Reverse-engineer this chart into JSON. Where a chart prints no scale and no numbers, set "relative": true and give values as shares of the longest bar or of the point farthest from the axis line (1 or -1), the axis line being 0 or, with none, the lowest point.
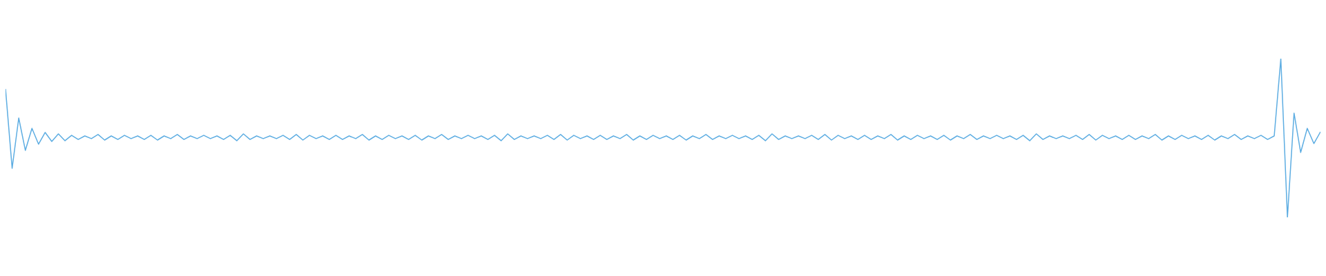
{
  "chart_data": {
    "type": "line",
    "relative": true,
    "color": "#5dade2",
    "marker": "none",
    "categories": [
      null,
      null,
      null,
      null,
      null,
      null,
      null,
      null,
      null,
      null,
      null,
      null,
      null,
      null,
      null,
      null,
      null,
      null,
      null,
      null,
      null,
      null,
      null,
      null,
      null,
      null,
      null,
      null,
      null,
      null,
      null,
      null,
      null,
      null,
      null,
      null,
      null,
      null,
      null,
      null,
      null,
      null,
      null,
      null,
      null,
      null,
      null,
      null,
      null,
      null,
      null,
      null,
      null,
      null,
      null,
      null,
      null,
      null,
      null,
      null,
      null,
      null,
      null,
      null,
      null,
      null,
      null,
      null,
      null,
      null,
      null,
      null,
      null,
      null,
      null,
      null,
      null,
      null,
      null,
      null,
      null,
      null,
      null,
      null,
      null,
      null,
      null,
      null,
      null,
      null,
      null,
      null,
      null,
      null,
      null,
      null,
      null,
      null,
      null,
      null,
      null,
      null,
      null,
      null,
      null,
      null,
      null,
      null,
      null,
      null,
      null,
      null,
      null,
      null,
      null,
      null,
      null,
      null,
      null,
      null,
      null,
      null,
      null,
      null,
      null,
      null,
      null,
      null,
      null,
      null,
      null,
      null,
      null,
      null,
      null,
      null,
      null,
      null,
      null,
      null,
      null,
      null,
      null,
      null,
      null,
      null,
      null,
      null,
      null,
      null,
      null,
      null,
      null,
      null,
      null,
      null,
      null,
      null,
      null,
      null,
      null,
      null,
      null,
      null,
      null,
      null,
      null,
      null,
      null,
      null,
      null,
      null,
      null,
      null,
      null,
      null,
      null,
      null,
      null,
      null,
      null,
      null,
      null,
      null,
      null,
      null,
      null,
      null,
      null,
      null,
      null,
      null,
      null,
      null,
      null,
      null,
      null,
      null,
      null,
      null
    ],
    "values": [
      0.809,
      0.309,
      0.626,
      0.422,
      0.561,
      0.461,
      0.535,
      0.478,
      0.526,
      0.483,
      0.517,
      0.491,
      0.513,
      0.496,
      0.522,
      0.487,
      0.513,
      0.491,
      0.517,
      0.496,
      0.513,
      0.491,
      0.517,
      0.487,
      0.513,
      0.496,
      0.522,
      0.491,
      0.513,
      0.496,
      0.517,
      0.496,
      0.513,
      0.491,
      0.517,
      0.483,
      0.526,
      0.491,
      0.513,
      0.496,
      0.513,
      0.496,
      0.517,
      0.491,
      0.522,
      0.487,
      0.517,
      0.496,
      0.513,
      0.491,
      0.517,
      0.491,
      0.513,
      0.496,
      0.522,
      0.487,
      0.513,
      0.491,
      0.517,
      0.496,
      0.513,
      0.491,
      0.517,
      0.487,
      0.513,
      0.496,
      0.522,
      0.491,
      0.513,
      0.496,
      0.517,
      0.496,
      0.513,
      0.491,
      0.517,
      0.483,
      0.526,
      0.491,
      0.513,
      0.496,
      0.513,
      0.496,
      0.517,
      0.491,
      0.522,
      0.487,
      0.517,
      0.496,
      0.513,
      0.491,
      0.517,
      0.491,
      0.513,
      0.496,
      0.522,
      0.487,
      0.513,
      0.491,
      0.517,
      0.496,
      0.513,
      0.491,
      0.517,
      0.487,
      0.513,
      0.496,
      0.522,
      0.491,
      0.513,
      0.496,
      0.517,
      0.496,
      0.513,
      0.491,
      0.517,
      0.483,
      0.526,
      0.491,
      0.513,
      0.496,
      0.513,
      0.496,
      0.517,
      0.491,
      0.522,
      0.487,
      0.517,
      0.496,
      0.513,
      0.491,
      0.517,
      0.491,
      0.513,
      0.496,
      0.522,
      0.487,
      0.513,
      0.491,
      0.517,
      0.496,
      0.513,
      0.491,
      0.517,
      0.487,
      0.513,
      0.496,
      0.522,
      0.491,
      0.513,
      0.496,
      0.517,
      0.496,
      0.513,
      0.491,
      0.517,
      0.483,
      0.526,
      0.491,
      0.513,
      0.496,
      0.513,
      0.496,
      0.517,
      0.491,
      0.522,
      0.487,
      0.517,
      0.496,
      0.513,
      0.491,
      0.517,
      0.491,
      0.513,
      0.496,
      0.522,
      0.487,
      0.513,
      0.491,
      0.517,
      0.496,
      0.513,
      0.491,
      0.517,
      0.487,
      0.513,
      0.496,
      0.522,
      0.491,
      0.513,
      0.496,
      0.517,
      0.491,
      0.513,
      1,
      0,
      0.657,
      0.409,
      0.561,
      0.465,
      0.539
    ]
  }
}
